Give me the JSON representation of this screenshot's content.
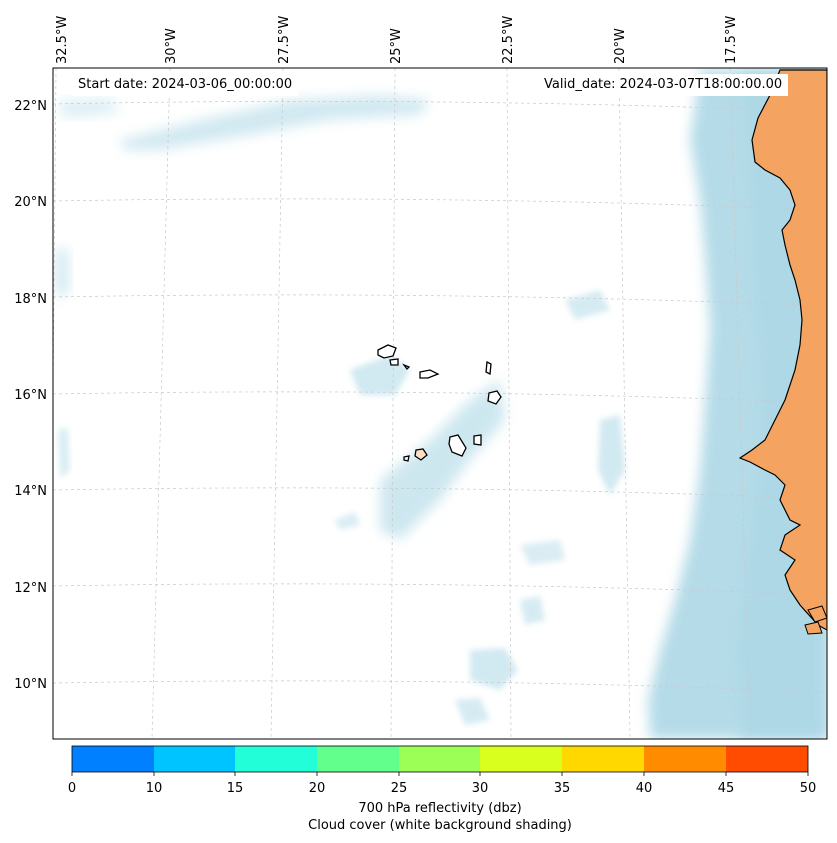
{
  "map": {
    "start_date": "Start date: 2024-03-06_00:00:00",
    "valid_date": "Valid_date: 2024-03-07T18:00:00.00",
    "lon_labels": [
      "32.5°W",
      "30°W",
      "27.5°W",
      "25°W",
      "22.5°W",
      "20°W",
      "17.5°W"
    ],
    "lat_labels": [
      "22°N",
      "20°N",
      "18°N",
      "16°N",
      "14°N",
      "12°N",
      "10°N"
    ],
    "land_color": "#f4a460",
    "cloud_color": "#add8e6"
  },
  "colorbar": {
    "ticks": [
      "0",
      "10",
      "15",
      "20",
      "25",
      "30",
      "35",
      "40",
      "45",
      "50"
    ],
    "colors": [
      "#0080ff",
      "#00c4ff",
      "#22ffd8",
      "#62ff8c",
      "#9cff56",
      "#d8ff1e",
      "#ffd800",
      "#ff8c00",
      "#ff4c00"
    ],
    "label_line1": "700 hPa reflectivity (dbz)",
    "label_line2": "Cloud cover (white background shading)"
  }
}
